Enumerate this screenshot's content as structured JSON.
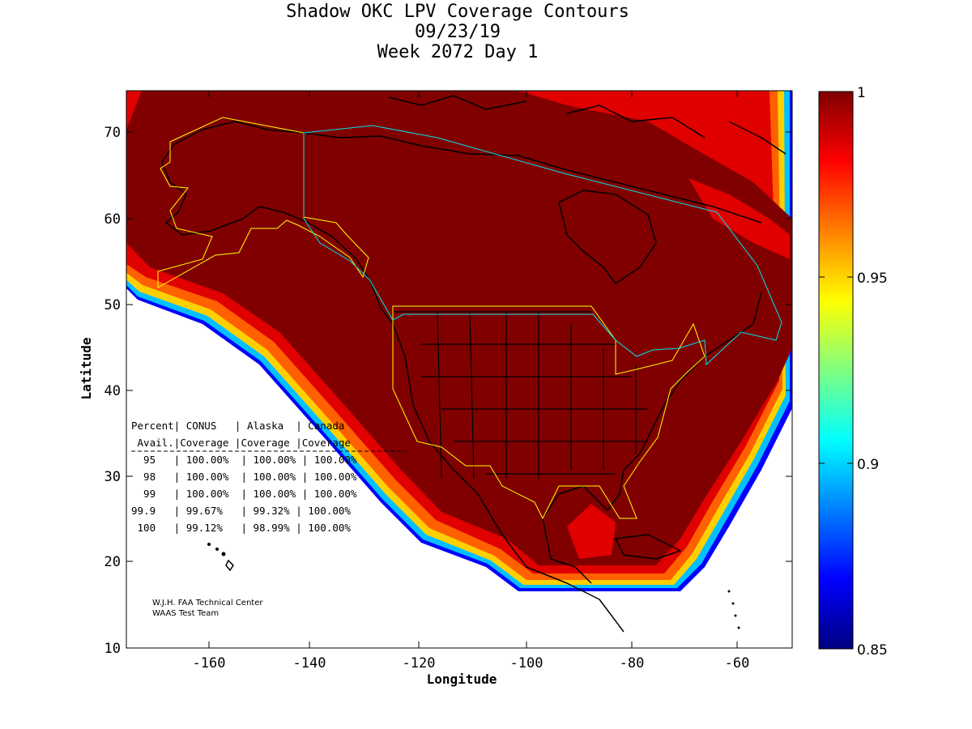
{
  "title": {
    "line1": "Shadow OKC LPV Coverage Contours",
    "line2": "09/23/19",
    "line3": "Week 2072 Day 1"
  },
  "axes": {
    "xlabel": "Longitude",
    "ylabel": "Latitude",
    "xticks": [
      "-160",
      "-140",
      "-120",
      "-100",
      "-80",
      "-60"
    ],
    "yticks": [
      "10",
      "20",
      "30",
      "40",
      "50",
      "60",
      "70"
    ]
  },
  "colorbar": {
    "labels": [
      "1",
      "0.95",
      "0.9",
      "0.85"
    ],
    "colors": [
      "#800000",
      "#ff0000",
      "#ff8000",
      "#ffff00",
      "#80ff80",
      "#00ffff",
      "#0080ff",
      "#0000ff",
      "#000080"
    ]
  },
  "availability_table": {
    "header1": "Percent| CONUS   | Alaska  | Canada",
    "header2": " Avail.|Coverage |Coverage |Coverage",
    "rows": [
      "  95   | 100.00%  | 100.00% | 100.00%",
      "  98   | 100.00%  | 100.00% | 100.00%",
      "  99   | 100.00%  | 100.00% | 100.00%",
      "99.9   | 99.67%   | 99.32% | 100.00%",
      " 100   | 99.12%   | 98.99% | 100.00%"
    ]
  },
  "credits": {
    "line1": "W.J.H. FAA Technical Center",
    "line2": "WAAS Test Team"
  },
  "chart_data": {
    "type": "heatmap",
    "title": "Shadow OKC LPV Coverage Contours",
    "subtitle": "09/23/19 Week 2072 Day 1",
    "xlabel": "Longitude",
    "ylabel": "Latitude",
    "xlim": [
      -175,
      -50
    ],
    "ylim": [
      10,
      75
    ],
    "colorbar_range": [
      0.85,
      1
    ],
    "coverage": [
      {
        "region": "CONUS",
        "95": "100.00%",
        "98": "100.00%",
        "99": "100.00%",
        "99.9": "99.67%",
        "100": "99.12%"
      },
      {
        "region": "Alaska",
        "95": "100.00%",
        "98": "100.00%",
        "99": "100.00%",
        "99.9": "99.32%",
        "100": "98.99%"
      },
      {
        "region": "Canada",
        "95": "100.00%",
        "98": "100.00%",
        "99": "100.00%",
        "99.9": "100.00%",
        "100": "100.00%"
      }
    ]
  }
}
